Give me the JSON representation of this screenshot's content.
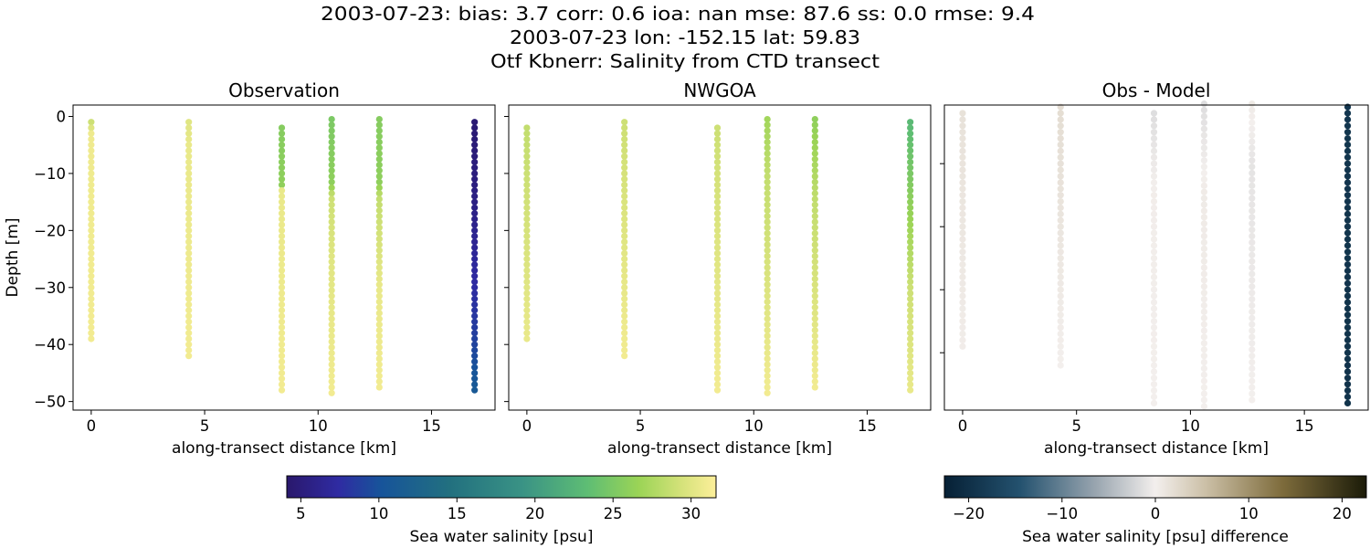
{
  "title_lines": [
    "2003-07-23: bias: 3.7  corr: 0.6  ioa: nan  mse: 87.6  ss: 0.0  rmse: 9.4",
    "2003-07-23 lon: -152.15 lat: 59.83",
    "Otf Kbnerr: Salinity from CTD transect"
  ],
  "chart_data": [
    {
      "type": "scatter",
      "title": "Observation",
      "xlabel": "along-transect distance [km]",
      "ylabel": "Depth [m]",
      "xlim": [
        -0.8,
        17.8
      ],
      "ylim": [
        -51.5,
        2
      ],
      "xticks": [
        0,
        5,
        10,
        15
      ],
      "yticks": [
        0,
        -10,
        -20,
        -30,
        -40,
        -50
      ],
      "ytick_labels": [
        "0",
        "−10",
        "−20",
        "−30",
        "−40",
        "−50"
      ],
      "colormap": "salinity",
      "depth_step_m": 1,
      "profiles": [
        {
          "x": 0,
          "depth_top": -1,
          "depth_bottom": -39,
          "salinity": [
            [
              -1,
              29
            ],
            [
              -3,
              30.8
            ],
            [
              -39,
              31
            ]
          ]
        },
        {
          "x": 4.3,
          "depth_top": -1,
          "depth_bottom": -42,
          "salinity": [
            [
              -1,
              30
            ],
            [
              -5,
              30.5
            ],
            [
              -42,
              31
            ]
          ]
        },
        {
          "x": 8.4,
          "depth_top": -2,
          "depth_bottom": -48,
          "salinity": [
            [
              -2,
              25.5
            ],
            [
              -12,
              26
            ],
            [
              -13,
              30.5
            ],
            [
              -48,
              31
            ]
          ]
        },
        {
          "x": 10.6,
          "depth_top": -0.5,
          "depth_bottom": -49,
          "salinity": [
            [
              -0.5,
              25
            ],
            [
              -12,
              26
            ],
            [
              -14,
              29
            ],
            [
              -25,
              30
            ],
            [
              -49,
              31
            ]
          ]
        },
        {
          "x": 12.7,
          "depth_top": -0.5,
          "depth_bottom": -48,
          "salinity": [
            [
              -0.5,
              25.5
            ],
            [
              -12,
              26
            ],
            [
              -14,
              28.5
            ],
            [
              -30,
              30.5
            ],
            [
              -48,
              31
            ]
          ]
        },
        {
          "x": 16.9,
          "depth_top": -1,
          "depth_bottom": -48,
          "salinity": [
            [
              -1,
              4.5
            ],
            [
              -15,
              5.5
            ],
            [
              -30,
              7.5
            ],
            [
              -40,
              9
            ],
            [
              -48,
              11
            ]
          ]
        }
      ]
    },
    {
      "type": "scatter",
      "title": "NWGOA",
      "xlabel": "along-transect distance [km]",
      "xlim": [
        -0.8,
        17.8
      ],
      "ylim": [
        -51.5,
        2
      ],
      "xticks": [
        0,
        5,
        10,
        15
      ],
      "yticks": [
        0,
        -10,
        -20,
        -30,
        -40,
        -50
      ],
      "colormap": "salinity",
      "depth_step_m": 1,
      "profiles": [
        {
          "x": 0,
          "depth_top": -2,
          "depth_bottom": -39,
          "salinity": [
            [
              -2,
              28.5
            ],
            [
              -39,
              30.5
            ]
          ]
        },
        {
          "x": 4.3,
          "depth_top": -1,
          "depth_bottom": -42,
          "salinity": [
            [
              -1,
              29
            ],
            [
              -42,
              31
            ]
          ]
        },
        {
          "x": 8.4,
          "depth_top": -2,
          "depth_bottom": -48,
          "salinity": [
            [
              -2,
              29
            ],
            [
              -48,
              31
            ]
          ]
        },
        {
          "x": 10.6,
          "depth_top": -0.5,
          "depth_bottom": -49,
          "salinity": [
            [
              -0.5,
              27
            ],
            [
              -10,
              28.5
            ],
            [
              -49,
              31
            ]
          ]
        },
        {
          "x": 12.7,
          "depth_top": -0.5,
          "depth_bottom": -48,
          "salinity": [
            [
              -0.5,
              26
            ],
            [
              -15,
              28.5
            ],
            [
              -48,
              31
            ]
          ]
        },
        {
          "x": 16.9,
          "depth_top": -1,
          "depth_bottom": -48,
          "salinity": [
            [
              -1,
              23
            ],
            [
              -15,
              26
            ],
            [
              -30,
              29
            ],
            [
              -48,
              30.5
            ]
          ]
        }
      ]
    },
    {
      "type": "scatter",
      "title": "Obs - Model",
      "xlabel": "along-transect distance [km]",
      "xlim": [
        -0.8,
        17.8
      ],
      "ylim": [
        -49.1,
        -0.7
      ],
      "xticks": [
        0,
        5,
        10,
        15
      ],
      "yticks": [
        -10,
        -20,
        -30,
        -40
      ],
      "colormap": "difference",
      "depth_step_m": 1,
      "profiles": [
        {
          "x": 0,
          "depth_top": -2,
          "depth_bottom": -39,
          "salinity": [
            [
              -2,
              1.5
            ],
            [
              -39,
              0.3
            ]
          ]
        },
        {
          "x": 4.3,
          "depth_top": -1,
          "depth_bottom": -42,
          "salinity": [
            [
              -1,
              2
            ],
            [
              -42,
              0
            ]
          ]
        },
        {
          "x": 8.4,
          "depth_top": -2,
          "depth_bottom": -48,
          "salinity": [
            [
              -2,
              -1.5
            ],
            [
              -15,
              0.2
            ],
            [
              -48,
              0
            ]
          ]
        },
        {
          "x": 10.6,
          "depth_top": -0.5,
          "depth_bottom": -49,
          "salinity": [
            [
              -0.5,
              -1.5
            ],
            [
              -15,
              0.5
            ],
            [
              -49,
              0
            ]
          ]
        },
        {
          "x": 12.7,
          "depth_top": -0.5,
          "depth_bottom": -48,
          "salinity": [
            [
              -0.5,
              0.5
            ],
            [
              -10,
              -1
            ],
            [
              -48,
              0
            ]
          ]
        },
        {
          "x": 16.9,
          "depth_top": -1,
          "depth_bottom": -48,
          "salinity": [
            [
              -1,
              -19
            ],
            [
              -48,
              -19.5
            ]
          ]
        }
      ]
    }
  ],
  "colorbars": {
    "salinity": {
      "label": "Sea water salinity [psu]",
      "range": [
        4.1,
        31.6
      ],
      "ticks": [
        5,
        10,
        15,
        20,
        25,
        30
      ],
      "tick_labels": [
        "5",
        "10",
        "15",
        "20",
        "25",
        "30"
      ],
      "stops": [
        [
          0,
          "#2a186c"
        ],
        [
          0.12,
          "#2f2ba2"
        ],
        [
          0.22,
          "#17549a"
        ],
        [
          0.38,
          "#22707f"
        ],
        [
          0.55,
          "#3a9385"
        ],
        [
          0.7,
          "#5ebd74"
        ],
        [
          0.82,
          "#9bd456"
        ],
        [
          0.92,
          "#d5e27a"
        ],
        [
          1,
          "#fdef9a"
        ]
      ]
    },
    "difference": {
      "label": "Sea water salinity [psu] difference",
      "range": [
        -22.6,
        22.6
      ],
      "ticks": [
        -20,
        -10,
        0,
        10,
        20
      ],
      "tick_labels": [
        "−20",
        "−10",
        "0",
        "10",
        "20"
      ],
      "stops": [
        [
          0,
          "#062035"
        ],
        [
          0.18,
          "#24526f"
        ],
        [
          0.36,
          "#9aa6b0"
        ],
        [
          0.5,
          "#f3efed"
        ],
        [
          0.62,
          "#cbbfa6"
        ],
        [
          0.8,
          "#7e6c3c"
        ],
        [
          1,
          "#1b1b08"
        ]
      ]
    }
  }
}
